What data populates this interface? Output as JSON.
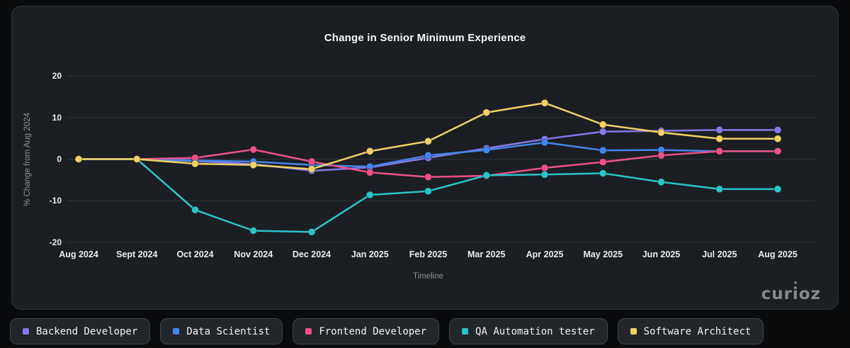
{
  "card": {
    "title": "Change in Senior Minimum Experience"
  },
  "branding": {
    "logo_text": "curioz",
    "logo_color": "#85898e"
  },
  "chart_data": {
    "type": "line",
    "title": "Change in Senior Minimum Experience",
    "xlabel": "Timeline",
    "ylabel": "% Change from Aug 2024",
    "ylim": [
      -20,
      20
    ],
    "yticks": [
      20,
      10,
      0,
      -10,
      -20
    ],
    "grid": true,
    "legend_position": "bottom",
    "background_color": "#1b1e23",
    "gridline_color": "#31353b",
    "categories": [
      "Aug 2024",
      "Sept 2024",
      "Oct 2024",
      "Nov 2024",
      "Dec 2024",
      "Jan 2025",
      "Feb 2025",
      "Mar 2025",
      "Apr 2025",
      "May 2025",
      "Jun 2025",
      "Jul 2025",
      "Aug 2025"
    ],
    "series": [
      {
        "name": "Backend Developer",
        "color": "#8678e8",
        "values": [
          0,
          0,
          -0.5,
          -1.2,
          -2.8,
          -2.0,
          0.3,
          2.6,
          4.8,
          6.6,
          6.8,
          7.0,
          7.0
        ]
      },
      {
        "name": "Data Scientist",
        "color": "#4485ec",
        "values": [
          0,
          0,
          -0.3,
          -0.6,
          -1.4,
          -1.8,
          0.9,
          2.2,
          4.0,
          2.1,
          2.2,
          1.9,
          1.9
        ]
      },
      {
        "name": "Frontend Developer",
        "color": "#ec5286",
        "values": [
          0,
          0,
          0.3,
          2.3,
          -0.6,
          -3.2,
          -4.3,
          -4.0,
          -2.1,
          -0.7,
          0.9,
          1.9,
          1.9
        ]
      },
      {
        "name": "QA Automation tester",
        "color": "#2bc4c6",
        "values": [
          0,
          0,
          -12.2,
          -17.2,
          -17.5,
          -8.6,
          -7.7,
          -3.9,
          -3.7,
          -3.4,
          -5.5,
          -7.2,
          -7.2
        ]
      },
      {
        "name": "Software Architect",
        "color": "#f0d165",
        "values": [
          0,
          0,
          -1.1,
          -1.4,
          -2.4,
          1.9,
          4.3,
          11.2,
          13.5,
          8.3,
          6.4,
          4.9,
          4.9
        ]
      }
    ]
  }
}
